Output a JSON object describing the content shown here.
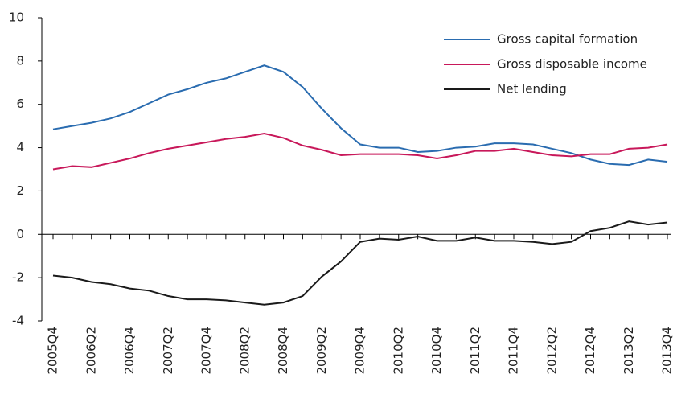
{
  "chart_data": {
    "type": "line",
    "categories": [
      "2005Q4",
      null,
      "2006Q2",
      null,
      "2006Q4",
      null,
      "2007Q2",
      null,
      "2007Q4",
      null,
      "2008Q2",
      null,
      "2008Q4",
      null,
      "2009Q2",
      null,
      "2009Q4",
      null,
      "2010Q2",
      null,
      "2010Q4",
      null,
      "2011Q2",
      null,
      "2011Q4",
      null,
      "2012Q2",
      null,
      "2012Q4",
      null,
      "2013Q2",
      null,
      "2013Q4"
    ],
    "series": [
      {
        "name": "Gross capital formation",
        "color": "#2a6cb0",
        "values": [
          4.85,
          5.0,
          5.15,
          5.35,
          5.65,
          6.05,
          6.45,
          6.7,
          7.0,
          7.2,
          7.5,
          7.8,
          7.5,
          6.8,
          5.8,
          4.9,
          4.15,
          4.0,
          4.0,
          3.8,
          3.85,
          4.0,
          4.05,
          4.2,
          4.2,
          4.15,
          3.95,
          3.75,
          3.45,
          3.25,
          3.2,
          3.45,
          3.35
        ]
      },
      {
        "name": "Gross disposable income",
        "color": "#c8185a",
        "values": [
          3.0,
          3.15,
          3.1,
          3.3,
          3.5,
          3.75,
          3.95,
          4.1,
          4.25,
          4.4,
          4.5,
          4.65,
          4.45,
          4.1,
          3.9,
          3.65,
          3.7,
          3.7,
          3.7,
          3.65,
          3.5,
          3.65,
          3.85,
          3.85,
          3.95,
          3.8,
          3.65,
          3.6,
          3.7,
          3.7,
          3.95,
          4.0,
          4.15
        ]
      },
      {
        "name": "Net lending",
        "color": "#1a1a1a",
        "values": [
          -1.9,
          -2.0,
          -2.2,
          -2.3,
          -2.5,
          -2.6,
          -2.85,
          -3.0,
          -3.0,
          -3.05,
          -3.15,
          -3.25,
          -3.15,
          -2.85,
          -1.95,
          -1.25,
          -0.35,
          -0.2,
          -0.25,
          -0.1,
          -0.3,
          -0.3,
          -0.15,
          -0.3,
          -0.3,
          -0.35,
          -0.45,
          -0.35,
          0.15,
          0.3,
          0.6,
          0.45,
          0.55
        ]
      }
    ],
    "ylim": [
      -4,
      10
    ],
    "yticks": [
      -4,
      -2,
      0,
      2,
      4,
      6,
      8,
      10
    ],
    "grid": false,
    "legend": "upper right"
  }
}
